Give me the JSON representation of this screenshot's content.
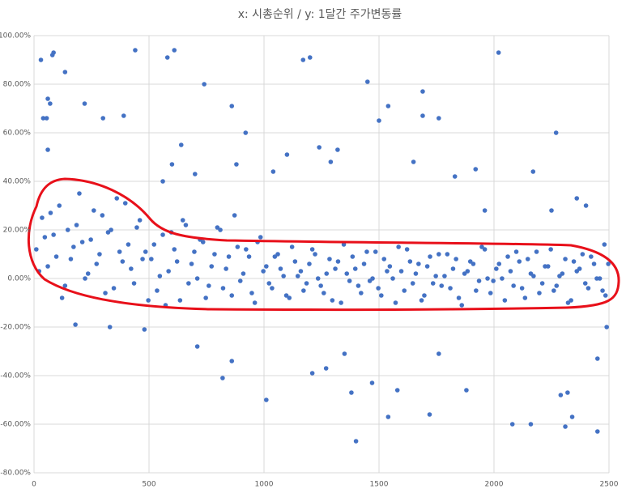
{
  "chart_data": {
    "type": "scatter",
    "title": "x: 시총순위 / y: 1달간 주가변동률",
    "color": "#4472c4",
    "grid": true,
    "xlim": [
      0,
      2500
    ],
    "xticks": [
      0,
      500,
      1000,
      1500,
      2000,
      2500
    ],
    "ylim": [
      -80,
      100
    ],
    "yticks": [
      {
        "value": -80,
        "label": "-80.00%"
      },
      {
        "value": -60,
        "label": "-60.00%"
      },
      {
        "value": -40,
        "label": "-40.00%"
      },
      {
        "value": -20,
        "label": "-20.00%"
      },
      {
        "value": 0,
        "label": "0.00%"
      },
      {
        "value": 20,
        "label": "20.00%"
      },
      {
        "value": 40,
        "label": "40.00%"
      },
      {
        "value": 60,
        "label": "60.00%"
      },
      {
        "value": 80,
        "label": "80.00%"
      },
      {
        "value": 100,
        "label": "100.00%"
      }
    ],
    "x": [
      30,
      80,
      85,
      60,
      70,
      40,
      55,
      60,
      135,
      220,
      300,
      390,
      440,
      580,
      610,
      740,
      860,
      920,
      1170,
      1200,
      1450,
      1500,
      1540,
      1690,
      1760,
      1690,
      2020,
      2270,
      1240,
      1320,
      1100,
      1010,
      820,
      860,
      1210,
      1270,
      1350,
      1380,
      1400,
      1470,
      1540,
      1580,
      1720,
      1760,
      1880,
      2080,
      2160,
      2290,
      2320,
      2340,
      2310,
      2450,
      2450,
      2490,
      710,
      180,
      330,
      480,
      560,
      600,
      640,
      700,
      880,
      1040,
      1290,
      1650,
      1920,
      1960,
      2170,
      2400,
      1830,
      2250,
      2360,
      2480,
      10,
      35,
      60,
      85,
      110,
      135,
      160,
      185,
      210,
      235,
      260,
      285,
      310,
      335,
      360,
      385,
      410,
      435,
      460,
      485,
      510,
      535,
      560,
      585,
      610,
      635,
      660,
      685,
      710,
      735,
      760,
      785,
      810,
      835,
      860,
      885,
      910,
      935,
      960,
      985,
      1010,
      1035,
      1060,
      1085,
      1110,
      1135,
      1160,
      1185,
      1210,
      1235,
      1260,
      1285,
      1310,
      1335,
      1360,
      1385,
      1410,
      1435,
      1460,
      1485,
      1510,
      1535,
      1560,
      1585,
      1610,
      1635,
      1660,
      1685,
      1710,
      1735,
      1760,
      1785,
      1810,
      1835,
      1860,
      1885,
      1910,
      1935,
      1960,
      1985,
      2010,
      2035,
      2060,
      2085,
      2110,
      2135,
      2160,
      2185,
      2210,
      2235,
      2260,
      2285,
      2310,
      2335,
      2360,
      2385,
      2410,
      2435,
      2460,
      2485,
      22,
      47,
      72,
      97,
      122,
      147,
      172,
      197,
      222,
      247,
      272,
      297,
      322,
      347,
      372,
      397,
      422,
      447,
      472,
      497,
      522,
      547,
      572,
      597,
      622,
      647,
      672,
      697,
      722,
      747,
      772,
      797,
      822,
      847,
      872,
      897,
      922,
      947,
      972,
      997,
      1022,
      1047,
      1072,
      1097,
      1122,
      1147,
      1172,
      1197,
      1222,
      1247,
      1272,
      1297,
      1322,
      1347,
      1372,
      1397,
      1422,
      1447,
      1472,
      1497,
      1522,
      1547,
      1572,
      1597,
      1622,
      1647,
      1672,
      1697,
      1722,
      1747,
      1772,
      1797,
      1822,
      1847,
      1872,
      1897,
      1922,
      1947,
      1972,
      1997,
      2022,
      2047,
      2072,
      2097,
      2122,
      2147,
      2172,
      2197,
      2222,
      2247,
      2272,
      2297,
      2322,
      2347,
      2372,
      2397,
      2422,
      2447,
      2472,
      2497
    ],
    "values": [
      90,
      92,
      93,
      74,
      72,
      66,
      66,
      53,
      85,
      72,
      66,
      67,
      94,
      91,
      94,
      80,
      71,
      60,
      90,
      91,
      81,
      65,
      71,
      77,
      66,
      67,
      93,
      60,
      54,
      53,
      51,
      -50,
      -41,
      -34,
      -39,
      -37,
      -31,
      -47,
      -67,
      -43,
      -57,
      -46,
      -56,
      -31,
      -46,
      -60,
      -60,
      -48,
      -47,
      -57,
      -61,
      -63,
      -33,
      -20,
      -28,
      -19,
      -20,
      -21,
      40,
      47,
      55,
      43,
      47,
      44,
      48,
      48,
      45,
      28,
      44,
      30,
      42,
      28,
      33,
      14,
      12,
      25,
      5,
      18,
      30,
      -3,
      8,
      22,
      15,
      2,
      28,
      10,
      -6,
      20,
      33,
      7,
      14,
      -2,
      24,
      11,
      8,
      -5,
      18,
      3,
      12,
      -9,
      22,
      6,
      0,
      15,
      -3,
      10,
      20,
      4,
      -7,
      13,
      2,
      9,
      -10,
      17,
      5,
      -4,
      10,
      1,
      -8,
      7,
      3,
      -2,
      12,
      0,
      -6,
      8,
      4,
      -10,
      2,
      9,
      -3,
      6,
      -1,
      11,
      -7,
      3,
      0,
      13,
      -5,
      7,
      2,
      -9,
      5,
      -2,
      10,
      1,
      -4,
      8,
      -11,
      3,
      6,
      -1,
      12,
      -6,
      4,
      0,
      9,
      -3,
      7,
      -8,
      2,
      11,
      -2,
      5,
      -5,
      1,
      8,
      -9,
      3,
      10,
      -4,
      6,
      0,
      -7,
      3,
      17,
      27,
      9,
      -8,
      20,
      13,
      35,
      0,
      16,
      6,
      26,
      19,
      -4,
      11,
      31,
      4,
      21,
      8,
      -9,
      14,
      1,
      -11,
      19,
      7,
      24,
      -2,
      11,
      16,
      -8,
      5,
      21,
      -4,
      9,
      26,
      -1,
      12,
      -6,
      15,
      3,
      -2,
      9,
      4,
      -7,
      13,
      1,
      -5,
      6,
      10,
      -3,
      2,
      -9,
      7,
      14,
      -1,
      4,
      -6,
      11,
      0,
      -4,
      8,
      5,
      -10,
      3,
      12,
      -2,
      6,
      -7,
      9,
      1,
      -3,
      10,
      4,
      -8,
      2,
      7,
      -5,
      13,
      0,
      -1,
      6,
      -9,
      3,
      11,
      -4,
      8,
      1,
      -6,
      5,
      12,
      -3,
      2,
      -10,
      7,
      4,
      -2,
      9,
      0,
      -5,
      6
    ]
  }
}
